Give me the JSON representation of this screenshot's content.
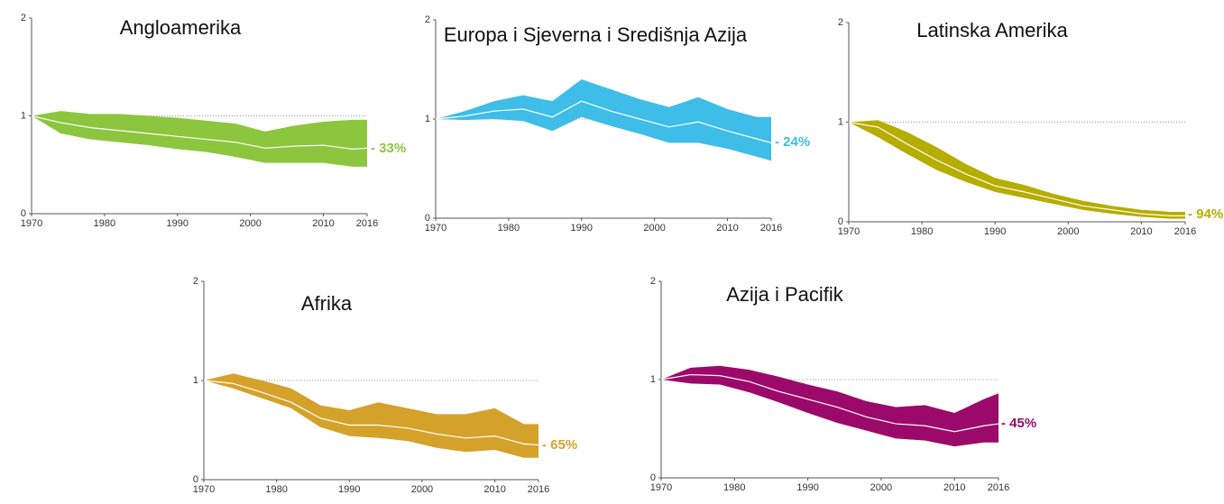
{
  "chart_data": [
    {
      "type": "band",
      "title": "Angloamerika",
      "annotation": "- 33%",
      "color": "#8cc63f",
      "line_color": "#ffffff",
      "reference_line": 1,
      "x": [
        1970,
        1974,
        1978,
        1982,
        1986,
        1990,
        1994,
        1998,
        2002,
        2006,
        2010,
        2014,
        2016
      ],
      "values": [
        1,
        0.93,
        0.88,
        0.85,
        0.82,
        0.79,
        0.76,
        0.73,
        0.67,
        0.69,
        0.7,
        0.66,
        0.67
      ],
      "lower": [
        1,
        0.82,
        0.76,
        0.73,
        0.7,
        0.66,
        0.63,
        0.58,
        0.52,
        0.52,
        0.52,
        0.48,
        0.48
      ],
      "upper": [
        1,
        1.05,
        1.02,
        1.02,
        1,
        0.98,
        0.95,
        0.92,
        0.84,
        0.9,
        0.94,
        0.96,
        0.96
      ],
      "xlim": [
        1970,
        2016
      ],
      "xticks": [
        1970,
        1980,
        1990,
        2000,
        2010,
        2016
      ],
      "ylim": [
        0,
        2
      ],
      "yticks": [
        0,
        1,
        2
      ]
    },
    {
      "type": "band",
      "title": "Europa i Sjeverna i Središnja Azija",
      "annotation": "- 24%",
      "color": "#3dbde8",
      "line_color": "#ffffff",
      "reference_line": 1,
      "x": [
        1970,
        1974,
        1978,
        1982,
        1986,
        1990,
        1994,
        1998,
        2002,
        2006,
        2010,
        2014,
        2016
      ],
      "values": [
        1,
        1.03,
        1.08,
        1.1,
        1.02,
        1.18,
        1.08,
        1,
        0.92,
        0.97,
        0.88,
        0.8,
        0.76
      ],
      "lower": [
        1,
        0.99,
        1,
        0.98,
        0.88,
        1.02,
        0.93,
        0.85,
        0.76,
        0.76,
        0.7,
        0.62,
        0.58
      ],
      "upper": [
        1,
        1.08,
        1.18,
        1.24,
        1.18,
        1.4,
        1.3,
        1.2,
        1.12,
        1.22,
        1.1,
        1.02,
        1.02
      ],
      "xlim": [
        1970,
        2016
      ],
      "xticks": [
        1970,
        1980,
        1990,
        2000,
        2010,
        2016
      ],
      "ylim": [
        0,
        2
      ],
      "yticks": [
        0,
        1,
        2
      ]
    },
    {
      "type": "band",
      "title": "Latinska Amerika",
      "annotation": "- 94%",
      "color": "#b5ad00",
      "line_color": "#ffffff",
      "reference_line": 1,
      "x": [
        1970,
        1974,
        1978,
        1982,
        1986,
        1990,
        1994,
        1998,
        2002,
        2006,
        2010,
        2014,
        2016
      ],
      "values": [
        1,
        0.95,
        0.78,
        0.62,
        0.48,
        0.36,
        0.3,
        0.23,
        0.16,
        0.12,
        0.08,
        0.06,
        0.06
      ],
      "lower": [
        1,
        0.85,
        0.68,
        0.52,
        0.4,
        0.3,
        0.24,
        0.18,
        0.12,
        0.08,
        0.05,
        0.03,
        0.03
      ],
      "upper": [
        1,
        1.02,
        0.9,
        0.75,
        0.58,
        0.44,
        0.37,
        0.28,
        0.21,
        0.16,
        0.12,
        0.1,
        0.1
      ],
      "xlim": [
        1970,
        2016
      ],
      "xticks": [
        1970,
        1980,
        1990,
        2000,
        2010,
        2016
      ],
      "ylim": [
        0,
        2
      ],
      "yticks": [
        0,
        1,
        2
      ]
    },
    {
      "type": "band",
      "title": "Afrika",
      "annotation": "- 65%",
      "color": "#d4a22a",
      "line_color": "#ffffff",
      "reference_line": 1,
      "x": [
        1970,
        1974,
        1978,
        1982,
        1986,
        1990,
        1994,
        1998,
        2002,
        2006,
        2010,
        2014,
        2016
      ],
      "values": [
        1,
        0.97,
        0.88,
        0.78,
        0.62,
        0.55,
        0.55,
        0.52,
        0.46,
        0.42,
        0.44,
        0.36,
        0.35
      ],
      "lower": [
        1,
        0.92,
        0.82,
        0.72,
        0.53,
        0.44,
        0.42,
        0.39,
        0.32,
        0.28,
        0.3,
        0.22,
        0.22
      ],
      "upper": [
        1,
        1.07,
        1,
        0.92,
        0.75,
        0.7,
        0.78,
        0.72,
        0.66,
        0.66,
        0.72,
        0.56,
        0.56
      ],
      "xlim": [
        1970,
        2016
      ],
      "xticks": [
        1970,
        1980,
        1990,
        2000,
        2010,
        2016
      ],
      "ylim": [
        0,
        2
      ],
      "yticks": [
        0,
        1,
        2
      ]
    },
    {
      "type": "band",
      "title": "Azija i Pacifik",
      "annotation": "- 45%",
      "color": "#9b0a6a",
      "line_color": "#ffffff",
      "reference_line": 1,
      "x": [
        1970,
        1974,
        1978,
        1982,
        1986,
        1990,
        1994,
        1998,
        2002,
        2006,
        2010,
        2014,
        2016
      ],
      "values": [
        1,
        1.05,
        1.04,
        0.98,
        0.88,
        0.8,
        0.72,
        0.62,
        0.55,
        0.53,
        0.47,
        0.53,
        0.55
      ],
      "lower": [
        1,
        0.96,
        0.95,
        0.87,
        0.77,
        0.66,
        0.56,
        0.48,
        0.4,
        0.38,
        0.32,
        0.36,
        0.36
      ],
      "upper": [
        1,
        1.12,
        1.14,
        1.1,
        1.03,
        0.95,
        0.88,
        0.78,
        0.72,
        0.74,
        0.66,
        0.8,
        0.86
      ],
      "xlim": [
        1970,
        2016
      ],
      "xticks": [
        1970,
        1980,
        1990,
        2000,
        2010,
        2016
      ],
      "ylim": [
        0,
        2
      ],
      "yticks": [
        0,
        1,
        2
      ]
    }
  ]
}
